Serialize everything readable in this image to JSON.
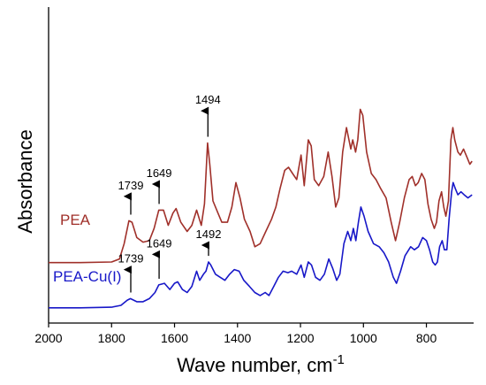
{
  "chart_data": {
    "type": "line",
    "title": "",
    "xlabel": "Wave number, cm",
    "xlabel_superscript": "-1",
    "ylabel": "Absorbance",
    "xlim": [
      2000,
      650
    ],
    "x_reversed": true,
    "ylim": [
      0,
      1
    ],
    "y_ticks_shown": false,
    "grid": false,
    "x_ticks": [
      2000,
      1800,
      1600,
      1400,
      1200,
      1000,
      800
    ],
    "series": [
      {
        "name": "PEA",
        "color": "#a0302a",
        "points": [
          [
            2000,
            0.198
          ],
          [
            1900,
            0.198
          ],
          [
            1800,
            0.2
          ],
          [
            1775,
            0.21
          ],
          [
            1760,
            0.26
          ],
          [
            1745,
            0.335
          ],
          [
            1735,
            0.33
          ],
          [
            1720,
            0.28
          ],
          [
            1700,
            0.265
          ],
          [
            1680,
            0.27
          ],
          [
            1665,
            0.31
          ],
          [
            1650,
            0.37
          ],
          [
            1635,
            0.37
          ],
          [
            1620,
            0.32
          ],
          [
            1605,
            0.36
          ],
          [
            1595,
            0.375
          ],
          [
            1580,
            0.33
          ],
          [
            1560,
            0.3
          ],
          [
            1545,
            0.32
          ],
          [
            1530,
            0.37
          ],
          [
            1515,
            0.32
          ],
          [
            1505,
            0.39
          ],
          [
            1495,
            0.59
          ],
          [
            1488,
            0.52
          ],
          [
            1478,
            0.4
          ],
          [
            1462,
            0.36
          ],
          [
            1450,
            0.33
          ],
          [
            1432,
            0.33
          ],
          [
            1418,
            0.38
          ],
          [
            1405,
            0.46
          ],
          [
            1392,
            0.41
          ],
          [
            1378,
            0.34
          ],
          [
            1360,
            0.3
          ],
          [
            1345,
            0.25
          ],
          [
            1328,
            0.26
          ],
          [
            1310,
            0.3
          ],
          [
            1292,
            0.34
          ],
          [
            1278,
            0.38
          ],
          [
            1265,
            0.44
          ],
          [
            1250,
            0.5
          ],
          [
            1238,
            0.51
          ],
          [
            1225,
            0.49
          ],
          [
            1212,
            0.47
          ],
          [
            1198,
            0.55
          ],
          [
            1188,
            0.45
          ],
          [
            1175,
            0.6
          ],
          [
            1166,
            0.58
          ],
          [
            1156,
            0.47
          ],
          [
            1142,
            0.45
          ],
          [
            1126,
            0.48
          ],
          [
            1112,
            0.56
          ],
          [
            1100,
            0.48
          ],
          [
            1088,
            0.38
          ],
          [
            1078,
            0.41
          ],
          [
            1066,
            0.56
          ],
          [
            1054,
            0.64
          ],
          [
            1046,
            0.6
          ],
          [
            1040,
            0.57
          ],
          [
            1034,
            0.6
          ],
          [
            1025,
            0.56
          ],
          [
            1018,
            0.6
          ],
          [
            1010,
            0.7
          ],
          [
            1002,
            0.68
          ],
          [
            990,
            0.56
          ],
          [
            975,
            0.49
          ],
          [
            960,
            0.47
          ],
          [
            945,
            0.44
          ],
          [
            928,
            0.41
          ],
          [
            912,
            0.33
          ],
          [
            898,
            0.27
          ],
          [
            885,
            0.33
          ],
          [
            870,
            0.41
          ],
          [
            855,
            0.47
          ],
          [
            845,
            0.48
          ],
          [
            835,
            0.45
          ],
          [
            826,
            0.46
          ],
          [
            815,
            0.49
          ],
          [
            805,
            0.47
          ],
          [
            795,
            0.39
          ],
          [
            785,
            0.34
          ],
          [
            775,
            0.31
          ],
          [
            768,
            0.33
          ],
          [
            760,
            0.4
          ],
          [
            752,
            0.43
          ],
          [
            745,
            0.38
          ],
          [
            738,
            0.35
          ],
          [
            730,
            0.4
          ],
          [
            722,
            0.6
          ],
          [
            716,
            0.64
          ],
          [
            710,
            0.6
          ],
          [
            700,
            0.56
          ],
          [
            692,
            0.55
          ],
          [
            682,
            0.57
          ],
          [
            670,
            0.54
          ],
          [
            662,
            0.52
          ],
          [
            655,
            0.53
          ]
        ]
      },
      {
        "name": "PEA-Cu(I)",
        "color": "#1818c8",
        "points": [
          [
            2000,
            0.05
          ],
          [
            1900,
            0.05
          ],
          [
            1800,
            0.052
          ],
          [
            1770,
            0.058
          ],
          [
            1750,
            0.075
          ],
          [
            1740,
            0.08
          ],
          [
            1720,
            0.07
          ],
          [
            1700,
            0.07
          ],
          [
            1680,
            0.08
          ],
          [
            1662,
            0.1
          ],
          [
            1650,
            0.125
          ],
          [
            1632,
            0.13
          ],
          [
            1615,
            0.11
          ],
          [
            1600,
            0.13
          ],
          [
            1590,
            0.135
          ],
          [
            1575,
            0.11
          ],
          [
            1560,
            0.1
          ],
          [
            1545,
            0.12
          ],
          [
            1530,
            0.17
          ],
          [
            1520,
            0.14
          ],
          [
            1508,
            0.16
          ],
          [
            1500,
            0.17
          ],
          [
            1492,
            0.2
          ],
          [
            1485,
            0.19
          ],
          [
            1470,
            0.16
          ],
          [
            1455,
            0.15
          ],
          [
            1440,
            0.14
          ],
          [
            1425,
            0.16
          ],
          [
            1410,
            0.175
          ],
          [
            1395,
            0.17
          ],
          [
            1380,
            0.14
          ],
          [
            1362,
            0.12
          ],
          [
            1345,
            0.1
          ],
          [
            1328,
            0.09
          ],
          [
            1312,
            0.1
          ],
          [
            1300,
            0.09
          ],
          [
            1285,
            0.12
          ],
          [
            1270,
            0.15
          ],
          [
            1255,
            0.17
          ],
          [
            1240,
            0.165
          ],
          [
            1228,
            0.17
          ],
          [
            1212,
            0.16
          ],
          [
            1198,
            0.19
          ],
          [
            1188,
            0.15
          ],
          [
            1175,
            0.2
          ],
          [
            1165,
            0.19
          ],
          [
            1152,
            0.15
          ],
          [
            1138,
            0.14
          ],
          [
            1124,
            0.16
          ],
          [
            1110,
            0.21
          ],
          [
            1098,
            0.18
          ],
          [
            1085,
            0.14
          ],
          [
            1075,
            0.16
          ],
          [
            1062,
            0.26
          ],
          [
            1050,
            0.3
          ],
          [
            1040,
            0.27
          ],
          [
            1032,
            0.31
          ],
          [
            1024,
            0.27
          ],
          [
            1016,
            0.33
          ],
          [
            1008,
            0.38
          ],
          [
            998,
            0.35
          ],
          [
            985,
            0.3
          ],
          [
            968,
            0.26
          ],
          [
            950,
            0.25
          ],
          [
            935,
            0.23
          ],
          [
            920,
            0.2
          ],
          [
            905,
            0.15
          ],
          [
            895,
            0.13
          ],
          [
            882,
            0.17
          ],
          [
            868,
            0.22
          ],
          [
            850,
            0.25
          ],
          [
            838,
            0.24
          ],
          [
            825,
            0.25
          ],
          [
            812,
            0.28
          ],
          [
            800,
            0.27
          ],
          [
            790,
            0.24
          ],
          [
            780,
            0.2
          ],
          [
            772,
            0.19
          ],
          [
            765,
            0.2
          ],
          [
            758,
            0.25
          ],
          [
            750,
            0.27
          ],
          [
            743,
            0.24
          ],
          [
            735,
            0.24
          ],
          [
            728,
            0.34
          ],
          [
            720,
            0.43
          ],
          [
            715,
            0.46
          ],
          [
            708,
            0.44
          ],
          [
            700,
            0.42
          ],
          [
            690,
            0.43
          ],
          [
            680,
            0.42
          ],
          [
            668,
            0.41
          ],
          [
            655,
            0.42
          ]
        ]
      }
    ],
    "annotations": [
      {
        "label": "1739",
        "series": "PEA",
        "x": 1739,
        "y_from": 0.355,
        "y_to": 0.415
      },
      {
        "label": "1649",
        "series": "PEA",
        "x": 1649,
        "y_from": 0.39,
        "y_to": 0.455
      },
      {
        "label": "1494",
        "series": "PEA",
        "x": 1494,
        "y_from": 0.61,
        "y_to": 0.695
      },
      {
        "label": "1739",
        "series": "PEA-Cu(I)",
        "x": 1739,
        "y_from": 0.1,
        "y_to": 0.175
      },
      {
        "label": "1649",
        "series": "PEA-Cu(I)",
        "x": 1649,
        "y_from": 0.145,
        "y_to": 0.225
      },
      {
        "label": "1492",
        "series": "PEA-Cu(I)",
        "x": 1492,
        "y_from": 0.22,
        "y_to": 0.255
      }
    ]
  }
}
